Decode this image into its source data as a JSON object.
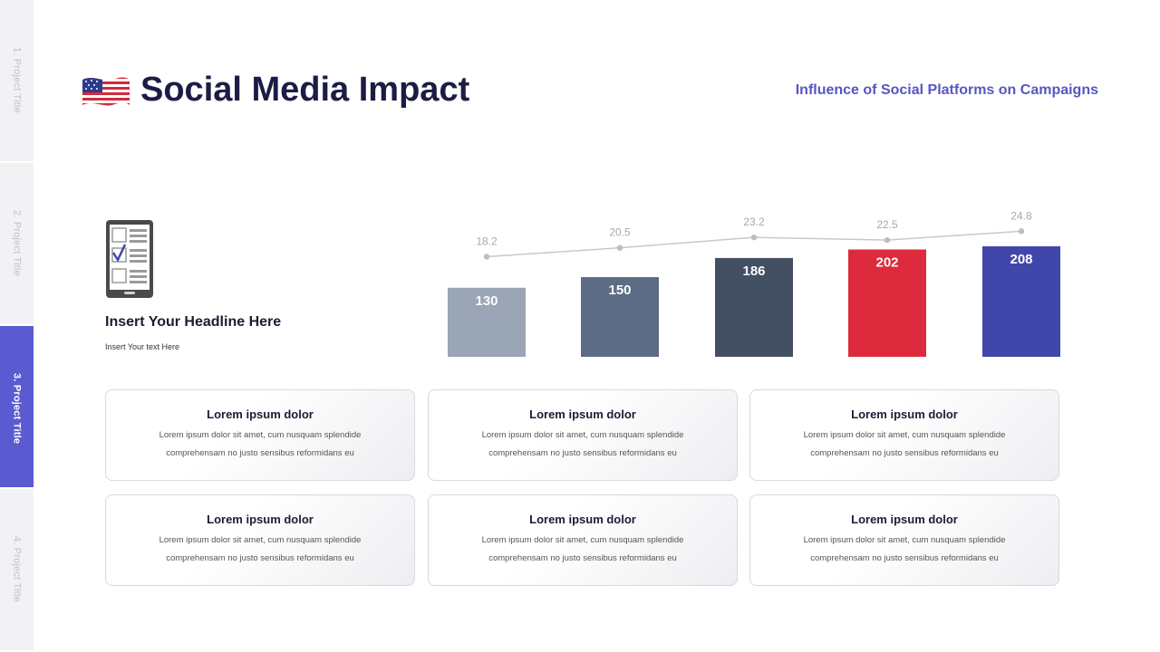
{
  "nav": {
    "tabs": [
      {
        "label": "1. Project Title"
      },
      {
        "label": "2. Project Title"
      },
      {
        "label": "3. Project Title",
        "active": true
      },
      {
        "label": "4. Project Title"
      }
    ]
  },
  "header": {
    "title": "Social Media Impact",
    "subtitle": "Influence of Social Platforms on Campaigns"
  },
  "side": {
    "headline": "Insert Your Headline Here",
    "text": "Insert Your text Here"
  },
  "colors": {
    "accent": "#5b5bd1",
    "bars": [
      "#9aa5b5",
      "#5d6c85",
      "#434f62",
      "#dd2a3d",
      "#4146aa"
    ],
    "line": "#c8c8c8"
  },
  "chart_data": {
    "type": "bar",
    "title": "",
    "xlabel": "",
    "ylabel": "",
    "categories": [
      "",
      "",
      "",
      "",
      ""
    ],
    "series": [
      {
        "name": "bars",
        "type": "bar",
        "values": [
          130,
          150,
          186,
          202,
          208
        ]
      },
      {
        "name": "line",
        "type": "line",
        "values": [
          18.2,
          20.5,
          23.2,
          22.5,
          24.8
        ]
      }
    ],
    "grid": false,
    "legend": "none"
  },
  "cards": [
    {
      "title": "Lorem ipsum dolor",
      "text": "Lorem ipsum dolor sit amet, cum nusquam splendide comprehensam no justo sensibus reformidans eu"
    },
    {
      "title": "Lorem ipsum dolor",
      "text": "Lorem ipsum dolor sit amet, cum nusquam splendide comprehensam no justo sensibus reformidans eu"
    },
    {
      "title": "Lorem ipsum dolor",
      "text": "Lorem ipsum dolor sit amet, cum nusquam splendide comprehensam no justo sensibus reformidans eu"
    },
    {
      "title": "Lorem ipsum dolor",
      "text": "Lorem ipsum dolor sit amet, cum nusquam splendide comprehensam no justo sensibus reformidans eu"
    },
    {
      "title": "Lorem ipsum dolor",
      "text": "Lorem ipsum dolor sit amet, cum nusquam splendide comprehensam no justo sensibus reformidans eu"
    },
    {
      "title": "Lorem ipsum dolor",
      "text": "Lorem ipsum dolor sit amet, cum nusquam splendide comprehensam no justo sensibus reformidans eu"
    }
  ]
}
